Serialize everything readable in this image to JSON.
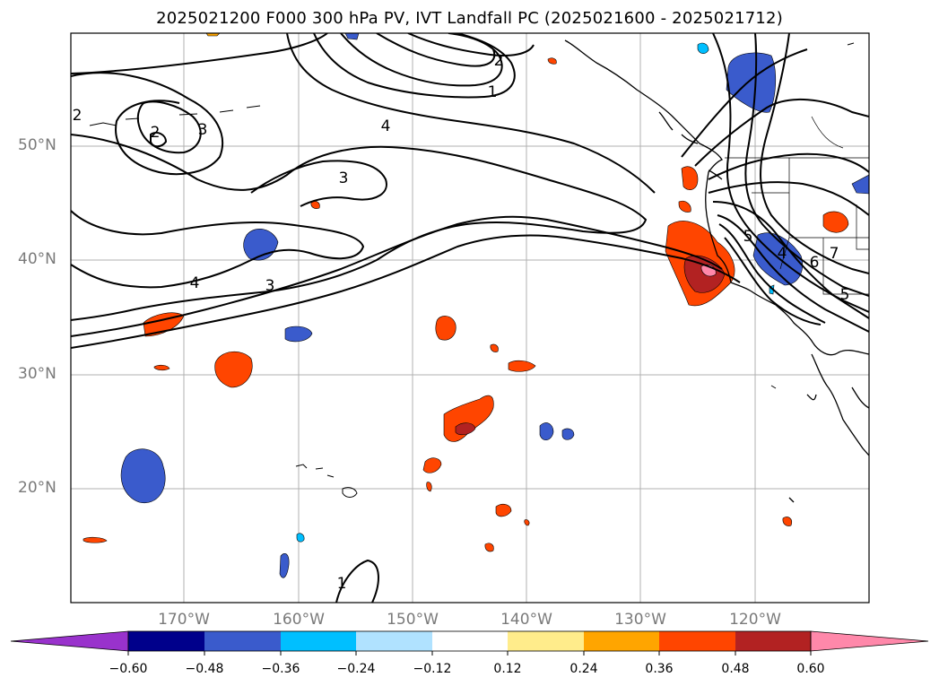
{
  "title": "2025021200 F000 300 hPa PV, IVT Landfall PC (2025021600 - 2025021712)",
  "latitude_labels": [
    "50°N",
    "40°N",
    "30°N",
    "20°N"
  ],
  "longitude_labels": [
    "170°W",
    "160°W",
    "150°W",
    "140°W",
    "130°W",
    "120°W"
  ],
  "contour_labels": [
    "2",
    "3",
    "4",
    "3",
    "3",
    "4",
    "2",
    "1",
    "1",
    "5",
    "6",
    "7",
    "5",
    "4",
    "2"
  ],
  "colorbar": {
    "ticks": [
      "−0.60",
      "−0.48",
      "−0.36",
      "−0.24",
      "−0.12",
      "0.12",
      "0.24",
      "0.36",
      "0.48",
      "0.60"
    ],
    "colors": [
      "#9932cc",
      "#00008b",
      "#3a5bcc",
      "#00bfff",
      "#b0e2ff",
      "#ffffff",
      "#ffec8b",
      "#ffa500",
      "#ff4500",
      "#b22222",
      "#ff88aa"
    ]
  },
  "map_colors": {
    "neg_strong": "#3a5bcc",
    "neg_weak": "#00bfff",
    "pos_weak": "#ffa500",
    "pos_mid": "#ff4500",
    "pos_strong": "#b22222",
    "pos_max": "#ff88aa"
  }
}
